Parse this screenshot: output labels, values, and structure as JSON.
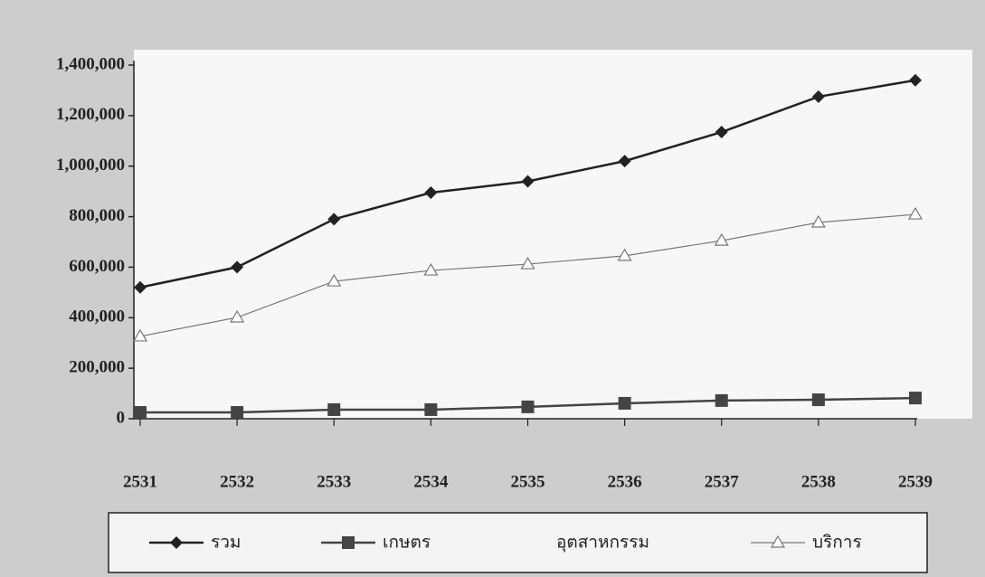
{
  "chart_data": {
    "type": "line",
    "categories": [
      "2531",
      "2532",
      "2533",
      "2534",
      "2535",
      "2536",
      "2537",
      "2538",
      "2539"
    ],
    "series": [
      {
        "name": "รวม",
        "color": "#222222",
        "marker": "diamond",
        "values": [
          520000,
          600000,
          790000,
          895000,
          940000,
          1020000,
          1135000,
          1275000,
          1340000
        ]
      },
      {
        "name": "เกษตร",
        "color": "#444444",
        "marker": "square",
        "values": [
          25000,
          25000,
          36000,
          36000,
          47000,
          61000,
          72000,
          75000,
          82000
        ]
      },
      {
        "name": "อุตสาหกรรม",
        "values": [
          null,
          null,
          null,
          null,
          null,
          null,
          null,
          null,
          null
        ]
      },
      {
        "name": "บริการ",
        "color": "#777777",
        "marker": "triangle",
        "values": [
          326000,
          401000,
          544000,
          587000,
          612000,
          645000,
          705000,
          777000,
          809000
        ]
      }
    ],
    "ylim": [
      0,
      1400000
    ],
    "yticks": [
      0,
      {
        "value": 200000,
        "label": "200,000"
      },
      {
        "value": 400000,
        "label": "400,000"
      },
      {
        "value": 600000,
        "label": "600,000"
      },
      {
        "value": 800000,
        "label": "800,000"
      },
      {
        "value": 1000000,
        "label": "1,000,000"
      },
      {
        "value": 1200000,
        "label": "1,200,000"
      },
      {
        "value": 1400000,
        "label": "1,400,000"
      }
    ],
    "grid": false
  }
}
